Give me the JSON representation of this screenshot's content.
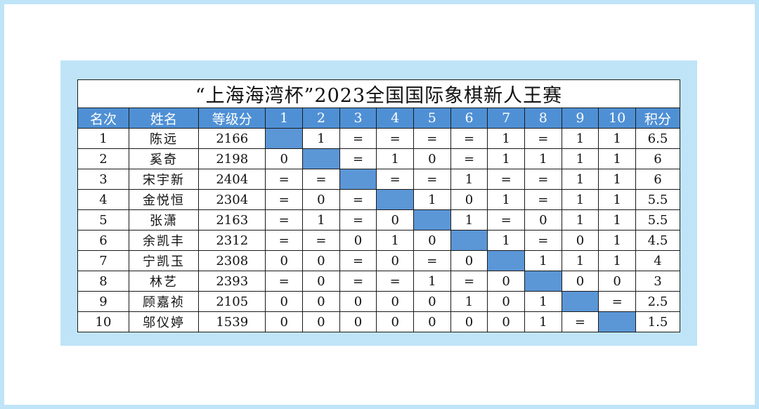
{
  "title": "“上海海湾杯”2023全国国际象棋新人王赛",
  "headers": [
    "名次",
    "姓名",
    "等级分",
    "1",
    "2",
    "3",
    "4",
    "5",
    "6",
    "7",
    "8",
    "9",
    "10",
    "积分"
  ],
  "rows": [
    {
      "rank": "1",
      "name": "陈远",
      "rating": "2166",
      "results": [
        "",
        "1",
        "=",
        "=",
        "=",
        "=",
        "1",
        "=",
        "1",
        "1"
      ],
      "score": "6.5"
    },
    {
      "rank": "2",
      "name": "奚奇",
      "rating": "2198",
      "results": [
        "0",
        "",
        "=",
        "1",
        "0",
        "=",
        "1",
        "1",
        "1",
        "1"
      ],
      "score": "6"
    },
    {
      "rank": "3",
      "name": "宋宇新",
      "rating": "2404",
      "results": [
        "=",
        "=",
        "",
        "=",
        "=",
        "1",
        "=",
        "=",
        "1",
        "1"
      ],
      "score": "6"
    },
    {
      "rank": "4",
      "name": "金悦恒",
      "rating": "2304",
      "results": [
        "=",
        "0",
        "=",
        "",
        "1",
        "0",
        "1",
        "=",
        "1",
        "1"
      ],
      "score": "5.5"
    },
    {
      "rank": "5",
      "name": "张潇",
      "rating": "2163",
      "results": [
        "=",
        "1",
        "=",
        "0",
        "",
        "1",
        "=",
        "0",
        "1",
        "1"
      ],
      "score": "5.5"
    },
    {
      "rank": "6",
      "name": "余凯丰",
      "rating": "2312",
      "results": [
        "=",
        "=",
        "0",
        "1",
        "0",
        "",
        "1",
        "=",
        "0",
        "1"
      ],
      "score": "4.5"
    },
    {
      "rank": "7",
      "name": "宁凯玉",
      "rating": "2308",
      "results": [
        "0",
        "0",
        "=",
        "0",
        "=",
        "0",
        "",
        "1",
        "1",
        "1"
      ],
      "score": "4"
    },
    {
      "rank": "8",
      "name": "林艺",
      "rating": "2393",
      "results": [
        "=",
        "0",
        "=",
        "=",
        "1",
        "=",
        "0",
        "",
        "0",
        "0"
      ],
      "score": "3"
    },
    {
      "rank": "9",
      "name": "顾嘉祯",
      "rating": "2105",
      "results": [
        "0",
        "0",
        "0",
        "0",
        "0",
        "1",
        "0",
        "1",
        "",
        "="
      ],
      "score": "2.5"
    },
    {
      "rank": "10",
      "name": "邬仪婷",
      "rating": "1539",
      "results": [
        "0",
        "0",
        "0",
        "0",
        "0",
        "0",
        "0",
        "1",
        "=",
        ""
      ],
      "score": "1.5"
    }
  ],
  "colors": {
    "header_bg": "#4f90d5",
    "diagonal_bg": "#5b96d6",
    "frame": "#bfe4f8"
  }
}
